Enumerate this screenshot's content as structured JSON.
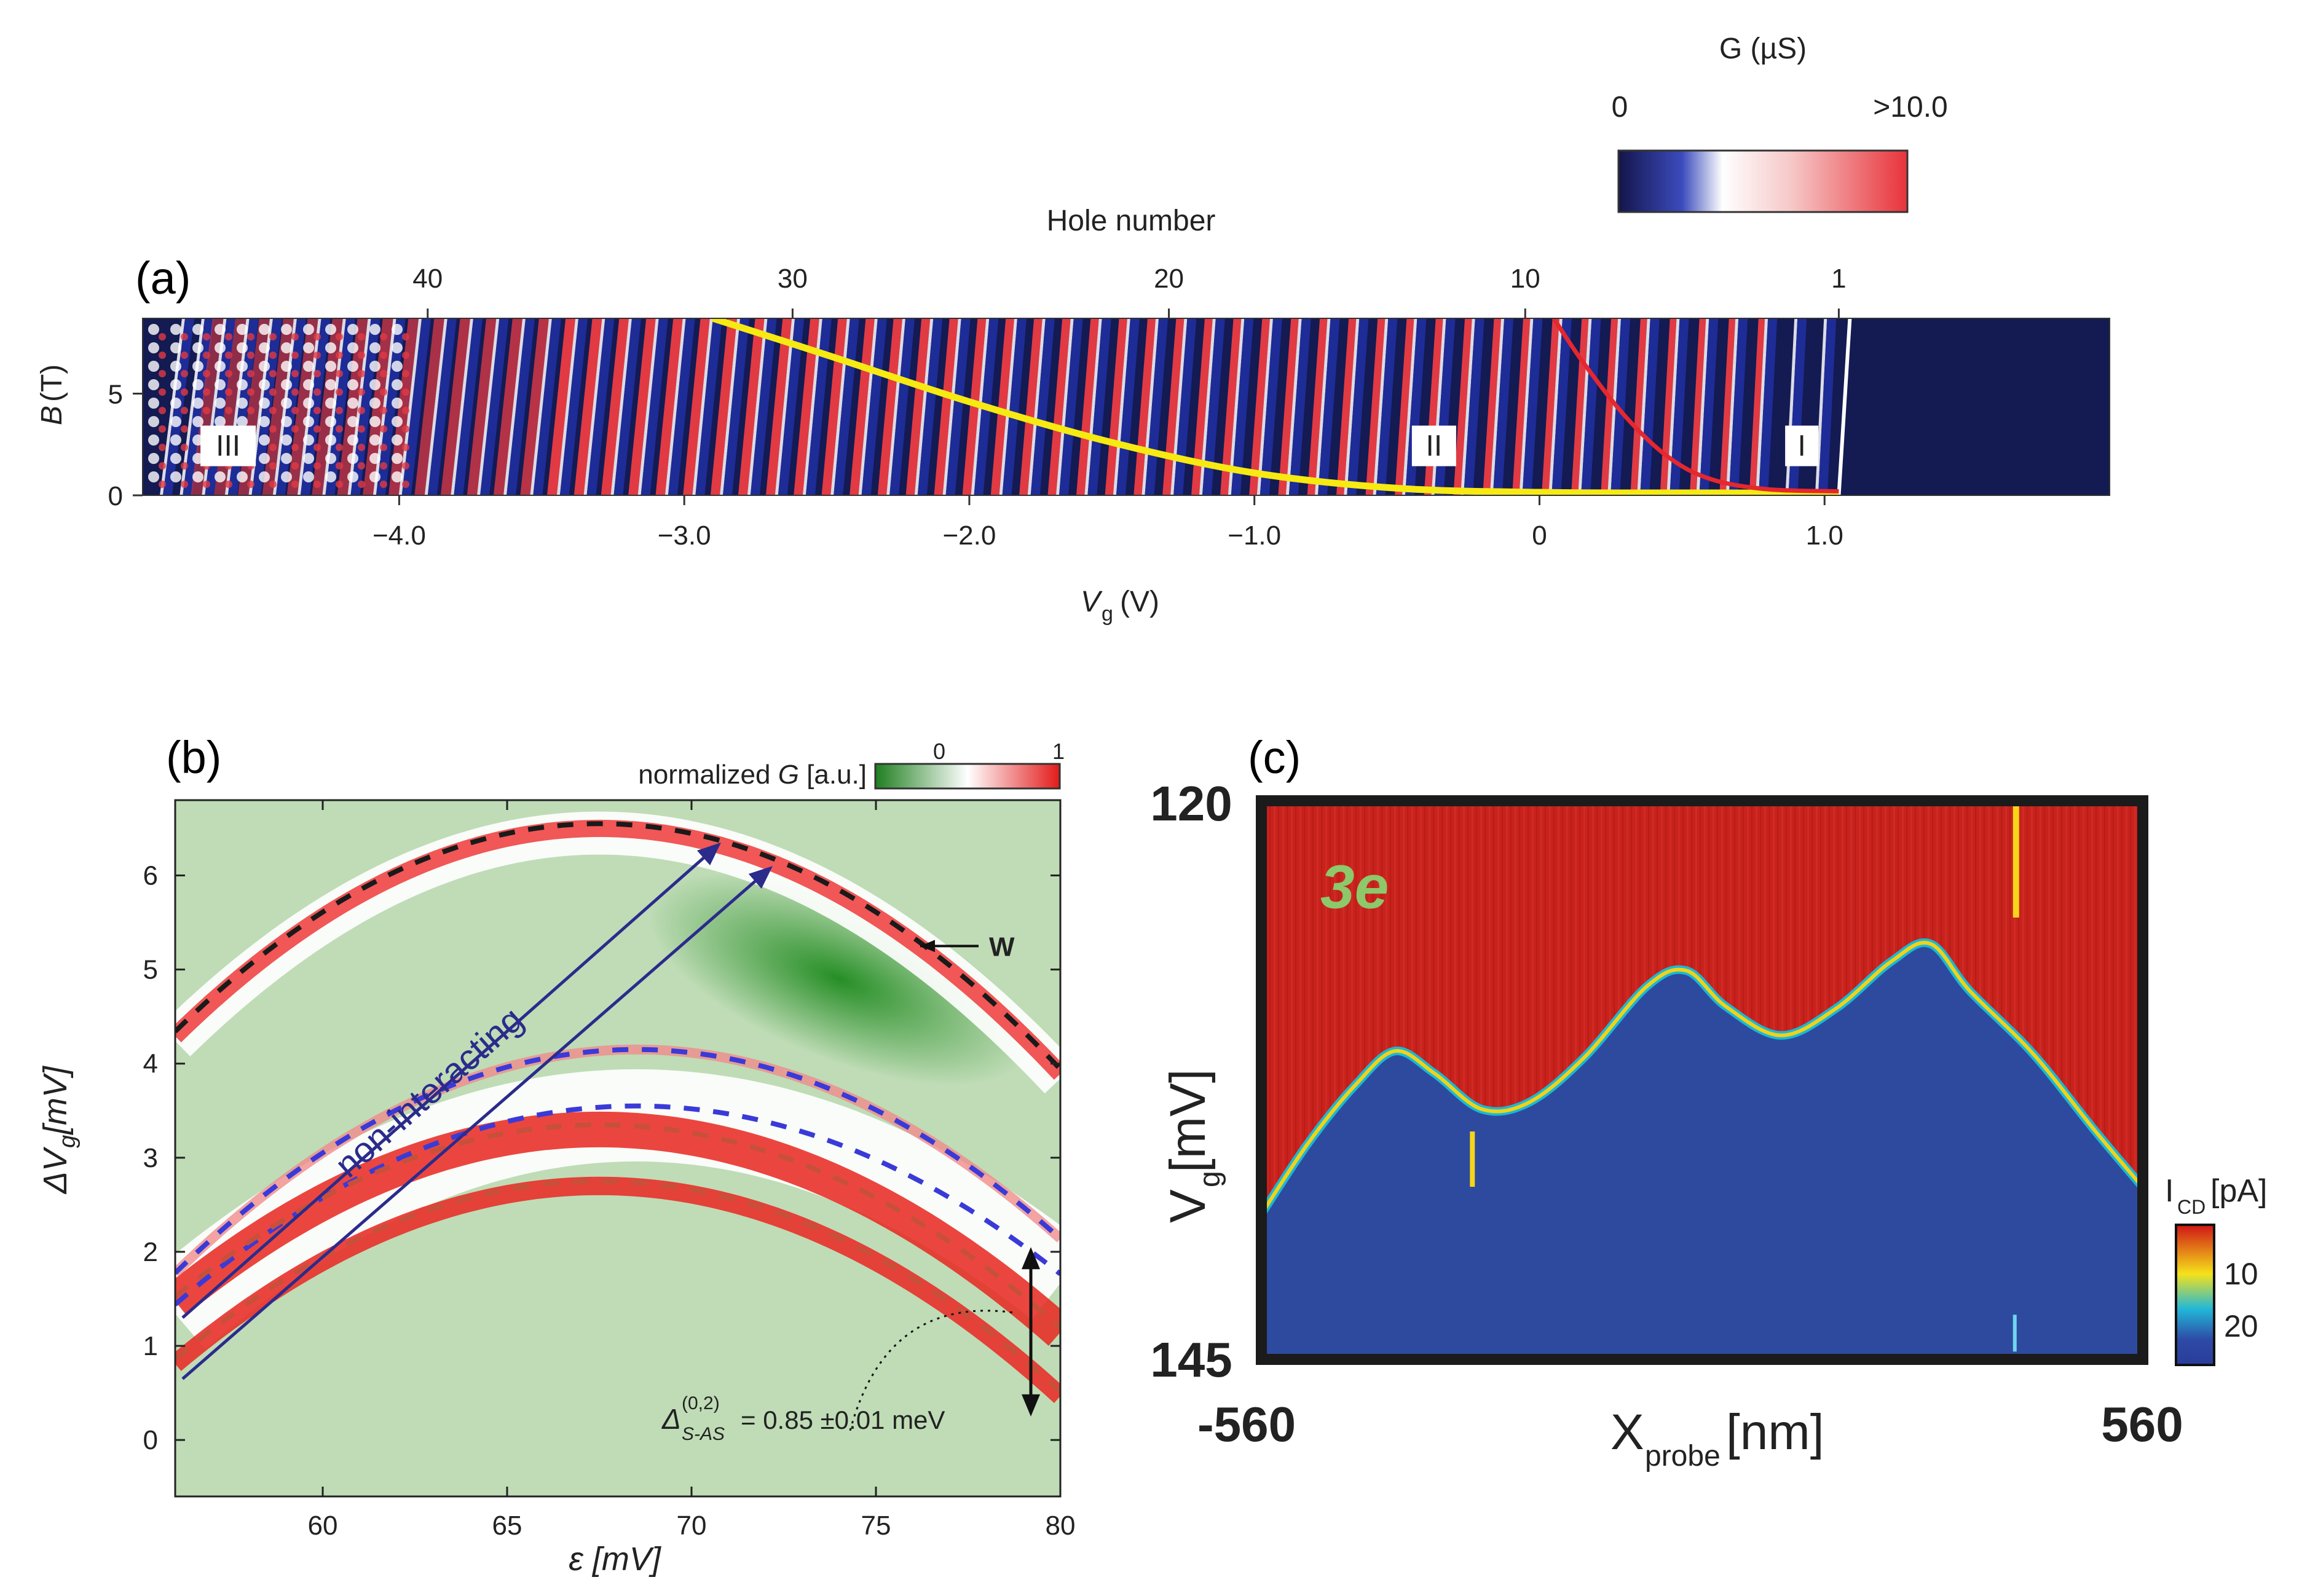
{
  "panel_labels": {
    "a": "(a)",
    "b": "(b)",
    "c": "(c)"
  },
  "chart_data": [
    {
      "id": "a",
      "type": "heatmap",
      "title": "",
      "xlabel": "V",
      "xlabel_sub": "g",
      "xlabel_unit": "(V)",
      "ylabel": "B",
      "ylabel_unit": "(T)",
      "top_axis_label": "Hole number",
      "xlim": [
        -4.9,
        2.0
      ],
      "ylim": [
        0,
        8.7
      ],
      "x_ticks": [
        -4.0,
        -3.0,
        -2.0,
        -1.0,
        0,
        1.0
      ],
      "x_tick_labels": [
        "−4.0",
        "−3.0",
        "−2.0",
        "−1.0",
        "0",
        "1.0"
      ],
      "y_ticks": [
        0,
        5
      ],
      "y_tick_labels": [
        "0",
        "5"
      ],
      "top_ticks": [
        {
          "label": "40",
          "vg": -3.9
        },
        {
          "label": "30",
          "vg": -2.62
        },
        {
          "label": "20",
          "vg": -1.3
        },
        {
          "label": "10",
          "vg": -0.05
        },
        {
          "label": "1",
          "vg": 1.05
        }
      ],
      "colorbar": {
        "label": "G (µS)",
        "min_label": "0",
        "max_label": ">10.0",
        "colors": [
          "#14154a",
          "#3b4bbd",
          "#ffffff",
          "#f2a9a9",
          "#e8333a"
        ]
      },
      "regions": [
        "III",
        "II",
        "I"
      ],
      "yellow_curve": [
        [
          -2.9,
          8.7
        ],
        [
          -2.5,
          6.9
        ],
        [
          -2.0,
          4.6
        ],
        [
          -1.5,
          2.6
        ],
        [
          -1.0,
          1.1
        ],
        [
          -0.5,
          0.35
        ],
        [
          0.0,
          0.15
        ],
        [
          0.5,
          0.12
        ],
        [
          1.05,
          0.12
        ]
      ],
      "red_curve": [
        [
          0.05,
          8.7
        ],
        [
          0.15,
          6.6
        ],
        [
          0.3,
          3.9
        ],
        [
          0.45,
          1.9
        ],
        [
          0.6,
          0.8
        ],
        [
          0.8,
          0.3
        ],
        [
          1.05,
          0.2
        ]
      ],
      "stripe_colors": [
        "#e13a43",
        "#ffffff",
        "#1f2f9f",
        "#161b5c"
      ],
      "background_color": "#141a52"
    },
    {
      "id": "b",
      "type": "heatmap",
      "xlabel": "ε [mV]",
      "ylabel": "ΔV",
      "ylabel_sub": "g",
      "ylabel_unit": " [mV]",
      "xlim": [
        56,
        80
      ],
      "ylim": [
        -0.6,
        6.8
      ],
      "x_ticks": [
        60,
        65,
        70,
        75,
        80
      ],
      "x_tick_labels": [
        "60",
        "65",
        "70",
        "75",
        "80"
      ],
      "y_ticks": [
        0,
        1,
        2,
        3,
        4,
        5,
        6
      ],
      "y_tick_labels": [
        "0",
        "1",
        "2",
        "3",
        "4",
        "5",
        "6"
      ],
      "colorbar": {
        "label_prefix": "normalized ",
        "label_var": "G",
        "label_suffix": " [a.u.]",
        "ticks": [
          "0",
          "1"
        ],
        "colors": [
          "#2a8a2a",
          "#ffffff",
          "#e02020"
        ]
      },
      "series": [
        {
          "name": "upper band",
          "style": "black-dashed",
          "apex_x": 67.5,
          "apex_y": 6.55,
          "curvature": 0.0167
        },
        {
          "name": "blue 1",
          "style": "blue-dashed",
          "apex_x": 68.5,
          "apex_y": 4.15,
          "curvature": 0.0152
        },
        {
          "name": "blue 2",
          "style": "blue-dashed",
          "apex_x": 68.5,
          "apex_y": 3.55,
          "curvature": 0.0135
        },
        {
          "name": "red 1",
          "style": "red-dashed",
          "apex_x": 67.5,
          "apex_y": 3.35,
          "curvature": 0.0138
        },
        {
          "name": "red 2",
          "style": "red-dashed",
          "apex_x": 67.5,
          "apex_y": 2.75,
          "curvature": 0.0143
        }
      ],
      "arrows": [
        {
          "from": [
            56.2,
            1.3
          ],
          "to": [
            70.8,
            6.35
          ]
        },
        {
          "from": [
            56.2,
            0.65
          ],
          "to": [
            72.2,
            6.1
          ]
        }
      ],
      "annotations": {
        "arrow_text": "non-interacting",
        "w_label": "W",
        "gap_symbol": "Δ",
        "gap_sup": "(0,2)",
        "gap_sub": "S-AS",
        "gap_value": "= 0.85 ±0.01 meV"
      }
    },
    {
      "id": "c",
      "type": "heatmap",
      "xlabel": "X",
      "xlabel_sub": "probe",
      "xlabel_unit": " [nm]",
      "ylabel": "V",
      "ylabel_sub": "g",
      "ylabel_unit": " [mV]",
      "x_tick_labels": [
        "-560",
        "560"
      ],
      "xlim": [
        -560,
        560
      ],
      "y_tick_labels": [
        "120",
        "145"
      ],
      "ylim": [
        145,
        120
      ],
      "inset_label": "3e",
      "boundary": [
        [
          -560,
          138.5
        ],
        [
          -500,
          135.3
        ],
        [
          -440,
          132.7
        ],
        [
          -390,
          131.2
        ],
        [
          -340,
          132.2
        ],
        [
          -280,
          133.8
        ],
        [
          -220,
          133.5
        ],
        [
          -150,
          131.5
        ],
        [
          -70,
          128.3
        ],
        [
          -20,
          127.6
        ],
        [
          30,
          129.2
        ],
        [
          100,
          130.5
        ],
        [
          170,
          129.3
        ],
        [
          240,
          127.2
        ],
        [
          290,
          126.4
        ],
        [
          340,
          128.5
        ],
        [
          420,
          131.3
        ],
        [
          500,
          134.8
        ],
        [
          560,
          137.3
        ]
      ],
      "colorbar": {
        "label": "I",
        "label_sub": "CD",
        "label_unit": " [pA]",
        "ticks": [
          "10",
          "20"
        ],
        "colors": [
          "#d81a1a",
          "#f5e21a",
          "#22b8d8",
          "#2d4aa6",
          "#253a8c"
        ]
      },
      "above_color": "#c8221c",
      "below_color": "#2e4a9e",
      "edge_color": "#f0d21a"
    }
  ]
}
